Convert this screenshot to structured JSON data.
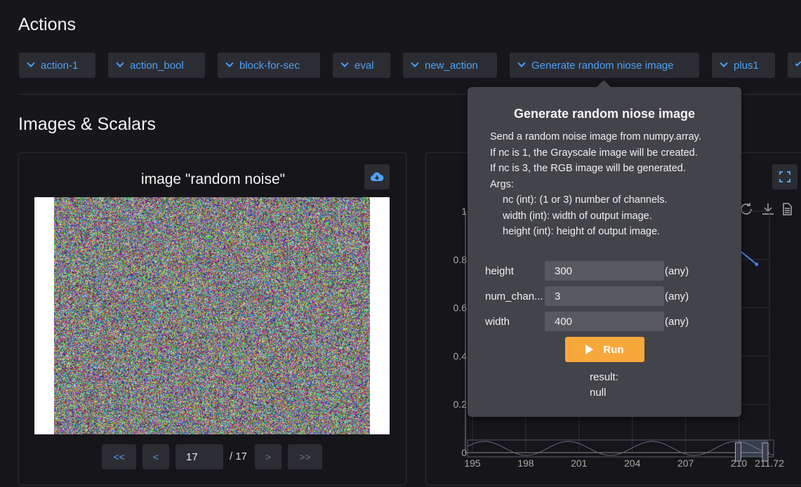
{
  "sections": {
    "actions": "Actions",
    "images_scalars": "Images & Scalars"
  },
  "actions": [
    {
      "label": "action-1"
    },
    {
      "label": "action_bool"
    },
    {
      "label": "block-for-sec"
    },
    {
      "label": "eval"
    },
    {
      "label": "new_action"
    },
    {
      "label": "Generate random niose image"
    },
    {
      "label": "plus1"
    },
    {
      "label": ""
    }
  ],
  "image_card": {
    "title": "image \"random noise\"",
    "download_icon": "cloud-download-icon",
    "pager": {
      "first": "<<",
      "prev": "<",
      "current": "17",
      "total": "/ 17",
      "next": ">",
      "last": ">>"
    }
  },
  "popover": {
    "title": "Generate random niose image",
    "description": [
      "Send a random noise image from numpy.array.",
      "If nc is 1, the Grayscale image will be created.",
      "If nc is 3, the RGB image will be generated.",
      "Args:"
    ],
    "args": [
      "nc (int): (1 or 3) number of channels.",
      "width (int): width of output image.",
      "height (int): height of output image."
    ],
    "fields": [
      {
        "label": "height",
        "value": "300",
        "type": "(any)"
      },
      {
        "label": "num_chan...",
        "value": "3",
        "type": "(any)"
      },
      {
        "label": "width",
        "value": "400",
        "type": "(any)"
      }
    ],
    "run_label": "Run",
    "result_label": "result:",
    "result_value": "null"
  },
  "chart_data": {
    "type": "line",
    "x_ticks": [
      "195",
      "198",
      "201",
      "204",
      "207",
      "210",
      "211.72"
    ],
    "y_ticks": [
      "0",
      "0.2",
      "0.4",
      "0.6",
      "0.8",
      "1"
    ],
    "xlim": [
      195,
      211.72
    ],
    "ylim": [
      0,
      1
    ],
    "grid": true,
    "series": [
      {
        "x": [
          209.4,
          210,
          211
        ],
        "y": [
          0.87,
          0.84,
          0.78
        ],
        "color": "#3b82e6"
      }
    ],
    "toolbar_icons": [
      "refresh-icon",
      "download-icon",
      "data-view-icon"
    ],
    "fullscreen_icon": "fullscreen-icon"
  },
  "colors": {
    "accent": "#4ea1f5",
    "run": "#f8a83b",
    "background": "#16161b",
    "popover": "#434449"
  }
}
